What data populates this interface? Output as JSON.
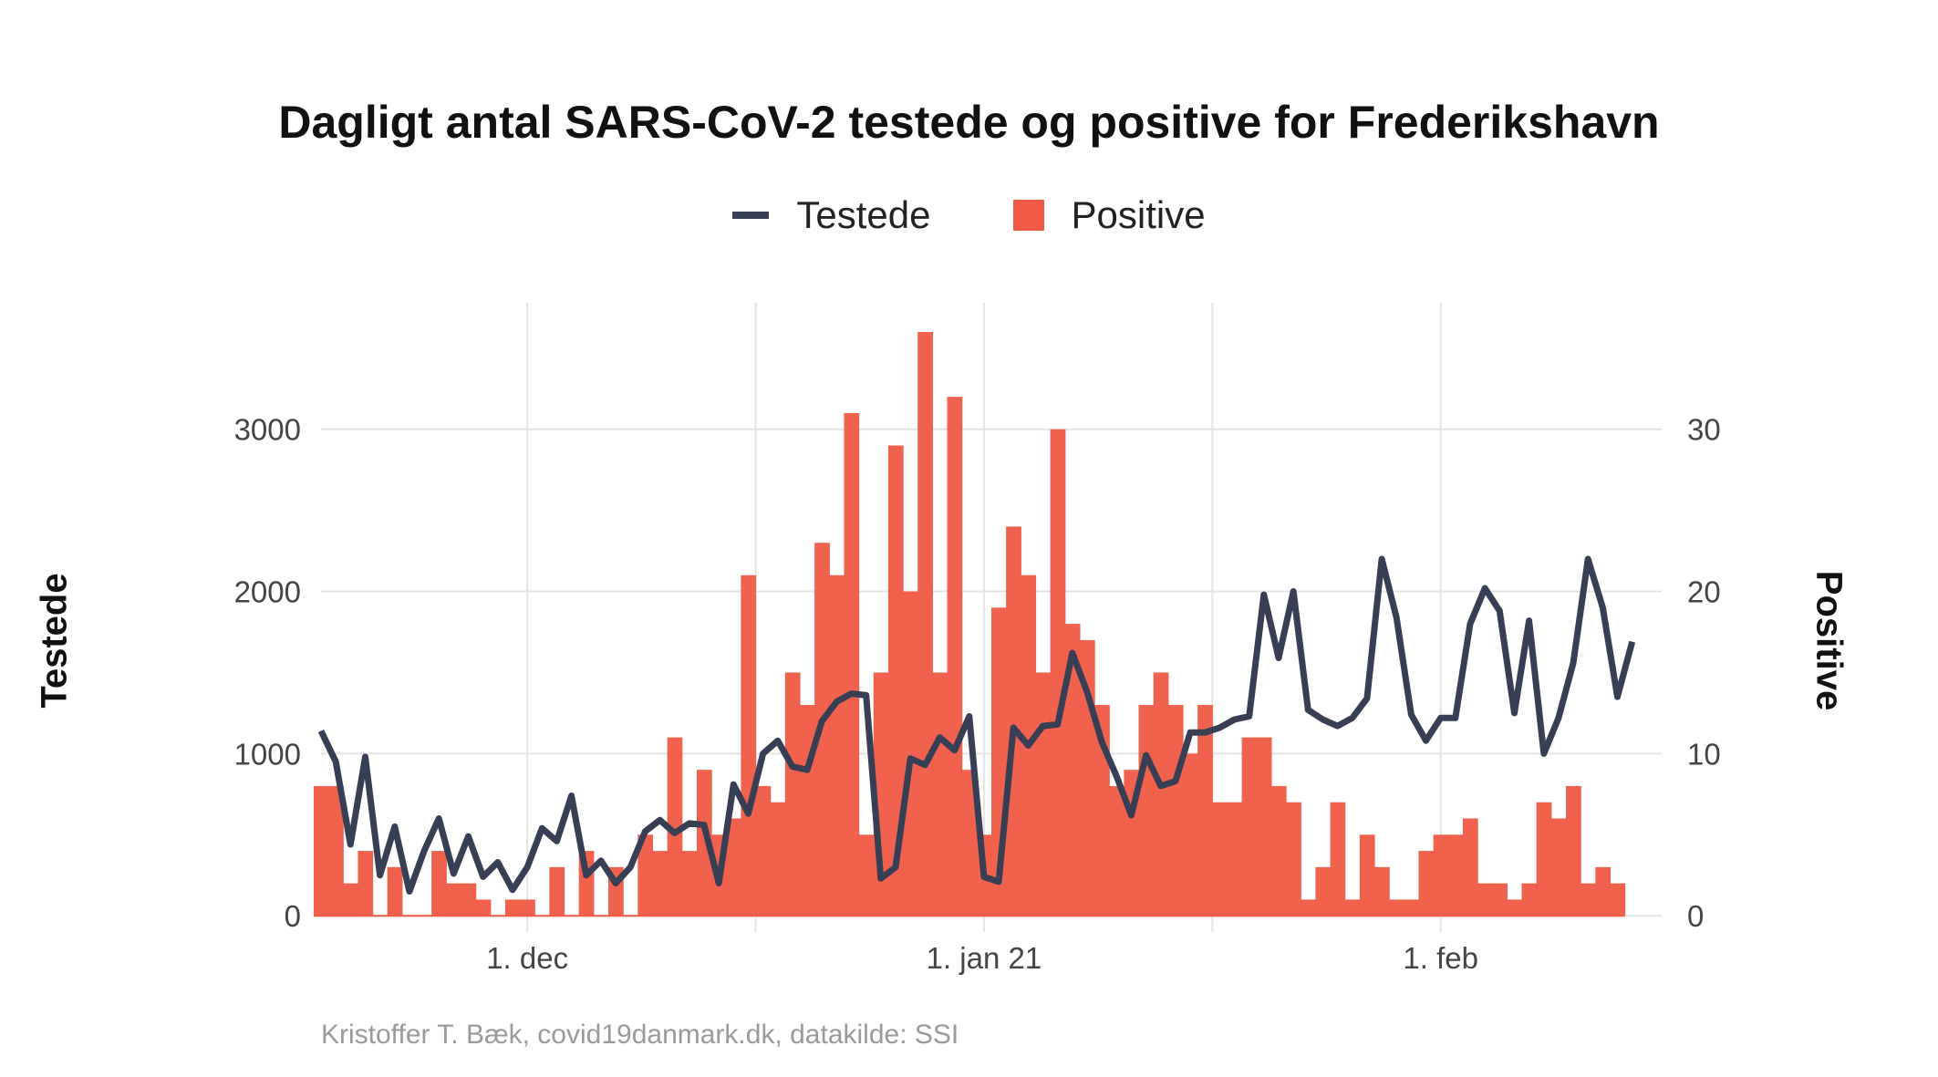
{
  "chart_data": {
    "type": "bar+line",
    "title": "Dagligt antal SARS-CoV-2 testede og positive for Frederikshavn",
    "legend": [
      {
        "name": "Testede",
        "kind": "line",
        "color": "#383f55"
      },
      {
        "name": "Positive",
        "kind": "bar",
        "color": "#f05a44"
      }
    ],
    "legend_position": "top",
    "ylabel_left": "Testede",
    "ylabel_right": "Positive",
    "ylim_left": [
      -100,
      3780
    ],
    "ylim_right": [
      -1,
      37.8
    ],
    "yticks_left": [
      0,
      1000,
      2000,
      3000
    ],
    "yticks_right": [
      0,
      10,
      20,
      30
    ],
    "x_start": "2020-11-17",
    "x_end": "2021-02-16",
    "xticks": [
      {
        "date": "2020-12-01",
        "label": "1. dec"
      },
      {
        "date": "2021-01-01",
        "label": "1. jan 21"
      },
      {
        "date": "2021-02-01",
        "label": "1. feb"
      }
    ],
    "grid": true,
    "series": [
      {
        "name": "Positive",
        "type": "bar",
        "axis": "right",
        "start_date": "2020-11-17",
        "values": [
          8,
          8,
          2,
          4,
          0,
          3,
          0,
          0,
          4,
          2,
          2,
          1,
          0,
          1,
          1,
          0,
          3,
          0,
          4,
          0,
          3,
          0,
          5,
          4,
          11,
          4,
          9,
          5,
          6,
          21,
          8,
          7,
          15,
          13,
          23,
          21,
          31,
          5,
          15,
          29,
          20,
          36,
          15,
          32,
          9,
          5,
          19,
          24,
          21,
          15,
          30,
          18,
          17,
          13,
          8,
          9,
          13,
          15,
          13,
          10,
          13,
          7,
          7,
          11,
          11,
          8,
          7,
          1,
          3,
          7,
          1,
          5,
          3,
          1,
          1,
          4,
          5,
          5,
          6,
          2,
          2,
          1,
          2,
          7,
          6,
          8,
          2,
          3,
          2
        ]
      },
      {
        "name": "Testede",
        "type": "line",
        "axis": "left",
        "start_date": "2020-11-17",
        "values": [
          1140,
          950,
          440,
          980,
          250,
          550,
          150,
          400,
          600,
          260,
          490,
          240,
          330,
          160,
          300,
          540,
          460,
          740,
          250,
          340,
          200,
          300,
          520,
          590,
          510,
          570,
          560,
          200,
          810,
          630,
          1000,
          1080,
          920,
          900,
          1200,
          1320,
          1370,
          1360,
          230,
          300,
          970,
          930,
          1100,
          1020,
          1230,
          240,
          210,
          1160,
          1050,
          1170,
          1180,
          1620,
          1380,
          1070,
          860,
          620,
          990,
          800,
          830,
          1130,
          1130,
          1160,
          1210,
          1230,
          1980,
          1590,
          2000,
          1270,
          1210,
          1170,
          1220,
          1340,
          2200,
          1840,
          1240,
          1080,
          1220,
          1220,
          1800,
          2020,
          1880,
          1250,
          1820,
          1000,
          1220,
          1560,
          2200,
          1900,
          1350,
          1690
        ]
      }
    ]
  },
  "caption": "Kristoffer T. Bæk, covid19danmark.dk, datakilde: SSI"
}
